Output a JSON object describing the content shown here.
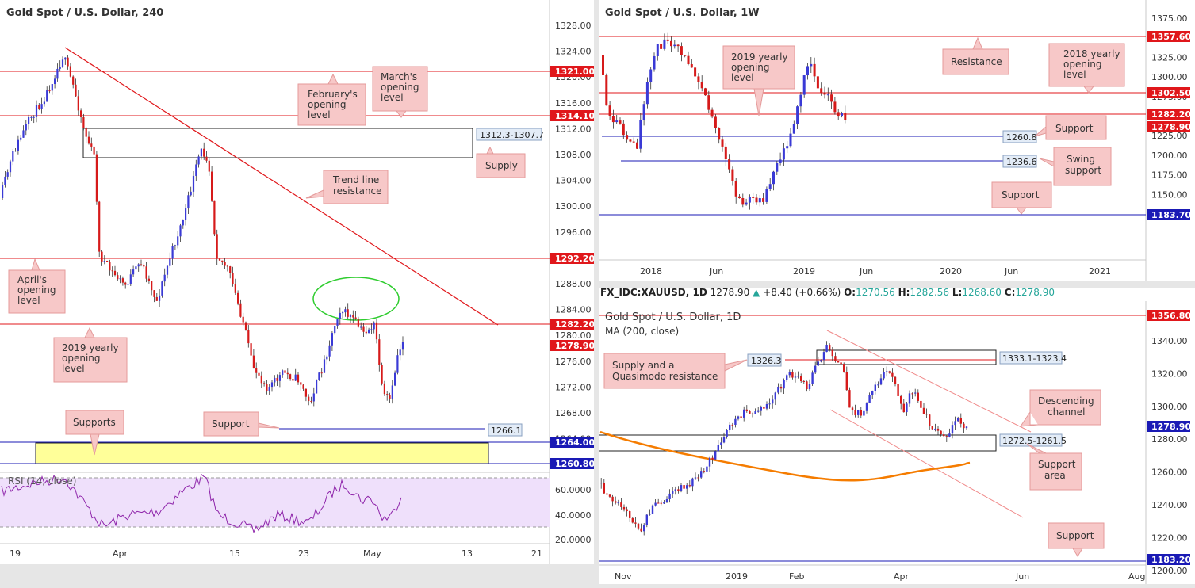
{
  "colors": {
    "red": "#e0171b",
    "blue": "#1a1ab5",
    "orange": "#f57c00",
    "green": "#2ecc2e",
    "callout_bg": "#f7c8c8",
    "callout_border": "#e49a9a",
    "rsi": "#8e24aa",
    "supports_zone": "#ffff99",
    "bull": "#3a3ad6",
    "bear": "#d61a1a"
  },
  "p1": {
    "title": "Gold Spot / U.S. Dollar, 240",
    "y_ticks": [
      "1328.00",
      "1324.00",
      "1320.00",
      "1316.00",
      "1312.00",
      "1308.00",
      "1304.00",
      "1300.00",
      "1296.00",
      "1292.00",
      "1288.00",
      "1284.00",
      "1280.00",
      "1276.00",
      "1272.00",
      "1268.00",
      "1264.00",
      "1260.00"
    ],
    "x_ticks": [
      "19",
      "Apr",
      "15",
      "23",
      "May",
      "13",
      "21"
    ],
    "price_tags": [
      "1321.00",
      "1314.10",
      "1292.20",
      "1282.20",
      "1278.90",
      "1264.00",
      "1260.80"
    ],
    "box_labels": [
      "1312.3-1307.7",
      "1266.1"
    ],
    "callouts": [
      "February's opening level",
      "March's opening level",
      "Supply",
      "Trend line resistance",
      "April's opening level",
      "2019 yearly opening level",
      "Support",
      "Supports"
    ],
    "rsi_title": "RSI (14, close)",
    "rsi_ticks": [
      "60.0000",
      "40.0000",
      "20.0000"
    ]
  },
  "p2": {
    "title": "Gold Spot / U.S. Dollar, 1W",
    "y_ticks": [
      "1375.00",
      "1350.00",
      "1325.00",
      "1300.00",
      "1275.00",
      "1250.00",
      "1225.00",
      "1200.00",
      "1175.00",
      "1150.00"
    ],
    "x_ticks": [
      "2018",
      "Jun",
      "2019",
      "Jun",
      "2020",
      "Jun",
      "2021"
    ],
    "price_tags": [
      "1357.60",
      "1302.50",
      "1282.20",
      "1278.90",
      "1183.70"
    ],
    "box_labels": [
      "1260.8",
      "1236.6"
    ],
    "callouts": [
      "Resistance",
      "2018 yearly opening level",
      "2019 yearly opening level",
      "Support",
      "Swing support",
      "Support"
    ]
  },
  "p3": {
    "header": {
      "symbol": "FX_IDC:XAUUSD, 1D",
      "close": "1278.90",
      "change": "+8.40 (+0.66%)",
      "o_label": "O:",
      "o": "1270.56",
      "h_label": "H:",
      "h": "1282.56",
      "l_label": "L:",
      "l": "1268.60",
      "c_label": "C:",
      "c": "1278.90"
    },
    "title": "Gold Spot / U.S. Dollar, 1D",
    "ma_label": "MA (200, close)",
    "y_ticks": [
      "1340.00",
      "1320.00",
      "1300.00",
      "1280.00",
      "1260.00",
      "1240.00",
      "1220.00",
      "1200.00"
    ],
    "x_ticks": [
      "Nov",
      "2019",
      "Feb",
      "Apr",
      "Jun",
      "Aug"
    ],
    "price_tags": [
      "1356.80",
      "1278.90",
      "1183.20"
    ],
    "box_labels": [
      "1326.3",
      "1333.1-1323.4",
      "1272.5-1261.5"
    ],
    "callouts": [
      "Supply and a Quasimodo resistance",
      "Descending channel",
      "Support area",
      "Support"
    ]
  },
  "chart_data": [
    {
      "type": "candlestick",
      "title": "Gold Spot / U.S. Dollar, 240",
      "ylim": [
        1258,
        1332
      ],
      "levels": [
        1321.0,
        1314.1,
        1292.2,
        1282.2,
        1264.0,
        1260.8
      ],
      "last": 1278.9,
      "supply_zone": [
        1307.7,
        1312.3
      ],
      "support": 1266.1,
      "rsi_ylim": [
        15,
        75
      ]
    },
    {
      "type": "candlestick",
      "title": "Gold Spot / U.S. Dollar, 1W",
      "ylim": [
        1140,
        1385
      ],
      "levels": [
        1357.6,
        1302.5,
        1282.2,
        1260.8,
        1236.6,
        1183.7
      ],
      "last": 1278.9
    },
    {
      "type": "candlestick",
      "title": "Gold Spot / U.S. Dollar, 1D",
      "ylim": [
        1180,
        1360
      ],
      "levels": [
        1356.8,
        1326.3,
        1183.2
      ],
      "last": 1278.9,
      "supply_zone": [
        1323.4,
        1333.1
      ],
      "support_area": [
        1261.5,
        1272.5
      ],
      "ma": "MA (200, close)"
    }
  ]
}
